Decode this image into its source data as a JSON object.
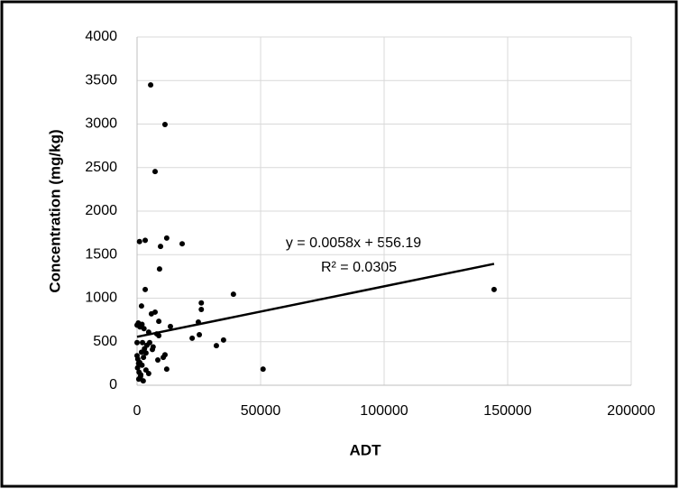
{
  "chart_data": {
    "type": "scatter",
    "x_label": "ADT",
    "y_label": "Concentration (mg/kg)",
    "series": [
      {
        "color": "#000000",
        "x": [
          5500,
          11300,
          7300,
          1000,
          3300,
          9500,
          12000,
          18250,
          9100,
          3300,
          51000,
          144500,
          39000,
          26000,
          26000,
          24800,
          22300,
          25200,
          35000,
          32100,
          13500,
          7300,
          5800,
          8800,
          1800,
          0,
          500,
          1200,
          2000,
          2800,
          2200,
          0,
          4700,
          5100,
          6500,
          6200,
          8000,
          8800,
          8400,
          10600,
          11300,
          12000,
          3600,
          3600,
          4700,
          2600,
          1100,
          0,
          300,
          600,
          200,
          800,
          1500,
          1400,
          700,
          2500,
          3000,
          1800,
          4000,
          2000
        ],
        "values": [
          3450,
          2995,
          2455,
          1650,
          1665,
          1595,
          1690,
          1625,
          1335,
          1100,
          185,
          1100,
          1045,
          945,
          870,
          725,
          540,
          580,
          520,
          455,
          675,
          840,
          820,
          735,
          910,
          690,
          715,
          670,
          700,
          650,
          490,
          490,
          610,
          490,
          440,
          410,
          590,
          570,
          290,
          320,
          350,
          185,
          370,
          175,
          135,
          320,
          260,
          340,
          300,
          250,
          200,
          150,
          120,
          100,
          70,
          50,
          420,
          380,
          460,
          230
        ]
      }
    ],
    "trendline": {
      "equation": "y = 0.0058x + 556.19",
      "r_squared": "R² = 0.0305",
      "slope": 0.0058,
      "intercept": 556.19,
      "color": "#000000"
    },
    "xlim": [
      0,
      200000
    ],
    "xticks": [
      0,
      50000,
      100000,
      150000,
      200000
    ],
    "ylim": [
      0,
      4000
    ],
    "yticks": [
      0,
      500,
      1000,
      1500,
      2000,
      2500,
      3000,
      3500,
      4000
    ],
    "grid": true
  }
}
